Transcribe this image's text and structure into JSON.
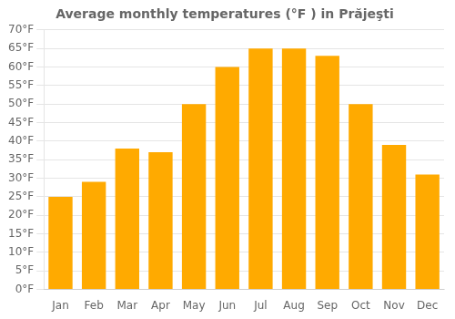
{
  "chart_data": {
    "type": "bar",
    "title": "Average monthly temperatures (°F ) in Prăjeşti",
    "categories": [
      "Jan",
      "Feb",
      "Mar",
      "Apr",
      "May",
      "Jun",
      "Jul",
      "Aug",
      "Sep",
      "Oct",
      "Nov",
      "Dec"
    ],
    "values": [
      25,
      29,
      38,
      37,
      50,
      60,
      65,
      65,
      63,
      50,
      39,
      31
    ],
    "color": "#FFAA00",
    "ylim": [
      0,
      70
    ],
    "yticks": [
      {
        "value": 0,
        "label": "0°F"
      },
      {
        "value": 5,
        "label": "5°F"
      },
      {
        "value": 10,
        "label": "10°F"
      },
      {
        "value": 15,
        "label": "15°F"
      },
      {
        "value": 20,
        "label": "20°F"
      },
      {
        "value": 25,
        "label": "25°F"
      },
      {
        "value": 30,
        "label": "30°F"
      },
      {
        "value": 35,
        "label": "35°F"
      },
      {
        "value": 40,
        "label": "40°F"
      },
      {
        "value": 45,
        "label": "45°F"
      },
      {
        "value": 50,
        "label": "50°F"
      },
      {
        "value": 55,
        "label": "55°F"
      },
      {
        "value": 60,
        "label": "60°F"
      },
      {
        "value": 65,
        "label": "65°F"
      },
      {
        "value": 70,
        "label": "70°F"
      }
    ],
    "grid": true
  }
}
